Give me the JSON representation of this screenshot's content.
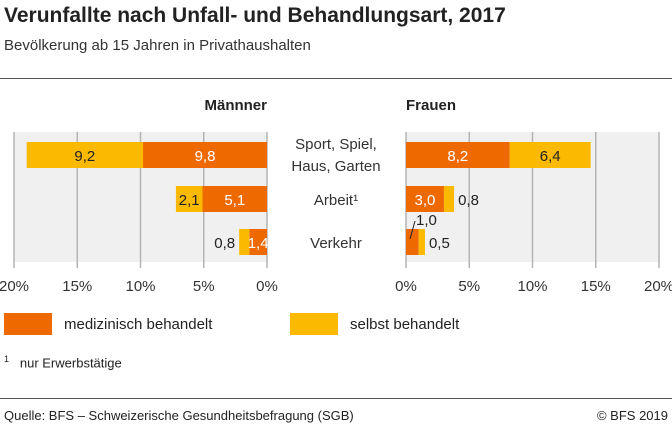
{
  "title": "Verunfallte nach Unfall- und Behandlungsart, 2017",
  "subtitle": "Bevölkerung ab 15 Jahren in Privathaushalten",
  "footnote": {
    "mark": "1",
    "text": "nur Erwerbstätige"
  },
  "source": "Quelle: BFS – Schweizerische Gesundheitsbefragung (SGB)",
  "copyright": "© BFS 2019",
  "colors": {
    "medizinisch": "#EE6A00",
    "selbst": "#FBBA00",
    "plot_bg": "#F0F0F0",
    "grid": "#B4B4B4"
  },
  "chart_data": {
    "type": "bar",
    "orientation": "horizontal-stacked-butterfly",
    "categories": [
      "Sport, Spiel, Haus, Garten",
      "Arbeit¹",
      "Verkehr"
    ],
    "panels": [
      {
        "title": "Männner",
        "direction": "left",
        "series": [
          {
            "name": "medizinisch behandelt",
            "values": [
              9.8,
              5.1,
              1.4
            ]
          },
          {
            "name": "selbst behandelt",
            "values": [
              9.2,
              2.1,
              0.8
            ]
          }
        ]
      },
      {
        "title": "Frauen",
        "direction": "right",
        "series": [
          {
            "name": "medizinisch behandelt",
            "values": [
              8.2,
              3.0,
              1.0
            ]
          },
          {
            "name": "selbst behandelt",
            "values": [
              6.4,
              0.8,
              0.5
            ]
          }
        ]
      }
    ],
    "xlim": [
      0,
      20
    ],
    "ticks": [
      "0%",
      "5%",
      "10%",
      "15%",
      "20%"
    ],
    "grid": true,
    "legend": "bottom-left"
  }
}
